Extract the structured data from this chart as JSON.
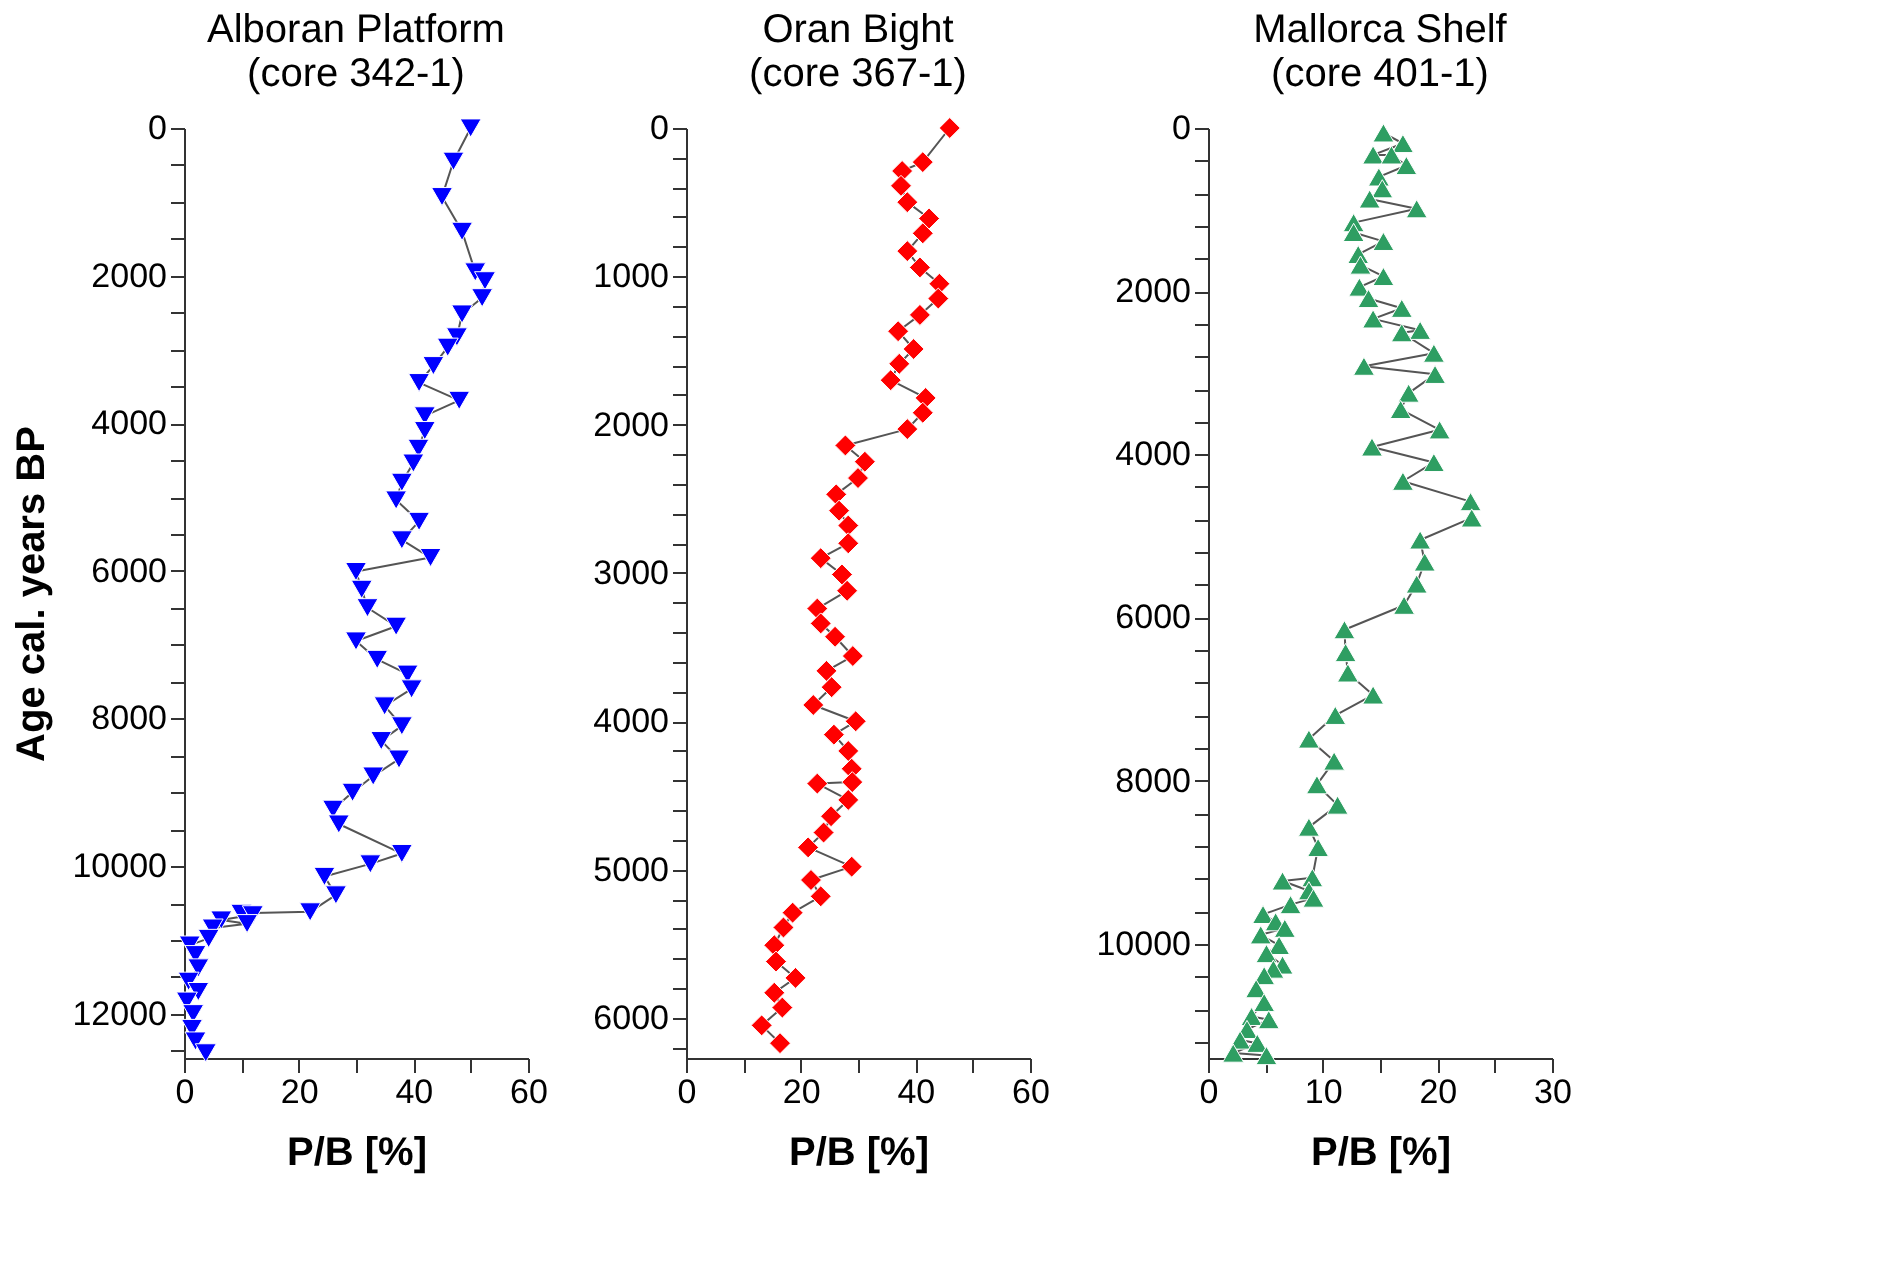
{
  "chart_data": [
    {
      "type": "line",
      "title": "Alboran Platform\n(core 342-1)",
      "xlabel": "P/B [%]",
      "ylabel": "Age cal. years BP",
      "marker": "triangle-down",
      "grid": false,
      "xlim": [
        0,
        60
      ],
      "xticks": [
        0,
        {
          "value": 10,
          "label": null
        },
        20,
        {
          "value": 30,
          "label": null
        },
        40,
        {
          "value": 50,
          "label": null
        },
        60
      ],
      "ylim": [
        12600,
        0
      ],
      "yticks": [
        0,
        {
          "value": 500,
          "label": null
        },
        {
          "value": 1000,
          "label": null
        },
        {
          "value": 1500,
          "label": null
        },
        2000,
        {
          "value": 2500,
          "label": null
        },
        {
          "value": 3000,
          "label": null
        },
        {
          "value": 3500,
          "label": null
        },
        4000,
        {
          "value": 4500,
          "label": null
        },
        {
          "value": 5000,
          "label": null
        },
        {
          "value": 5500,
          "label": null
        },
        6000,
        {
          "value": 6500,
          "label": null
        },
        {
          "value": 7000,
          "label": null
        },
        {
          "value": 7500,
          "label": null
        },
        8000,
        {
          "value": 8500,
          "label": null
        },
        {
          "value": 9000,
          "label": null
        },
        {
          "value": 9500,
          "label": null
        },
        10000,
        {
          "value": 10500,
          "label": null
        },
        {
          "value": 11000,
          "label": null
        },
        {
          "value": 11500,
          "label": null
        },
        12000,
        {
          "value": 12500,
          "label": null
        }
      ],
      "series": [
        {
          "color": "#0000ff",
          "x": [
            50,
            47,
            45,
            48.5,
            50.8,
            52.5,
            52,
            48.5,
            47.6,
            46,
            43.5,
            41,
            48,
            42,
            42,
            40.9,
            40,
            38,
            37,
            41,
            38,
            43,
            30,
            31,
            32,
            37,
            30,
            33.7,
            39,
            39.7,
            35,
            38,
            34.4,
            37.5,
            33,
            29.4,
            26,
            27,
            38,
            32.5,
            24.5,
            26.5,
            22,
            10,
            12,
            6.5,
            11,
            5,
            4.3,
            1,
            2,
            2.5,
            0.8,
            2.5,
            0.5,
            1.6,
            1.4,
            2,
            3.8
          ],
          "values": [
            0,
            450,
            930,
            1400,
            1950,
            2070,
            2300,
            2520,
            2830,
            2970,
            3220,
            3450,
            3690,
            3900,
            4100,
            4340,
            4540,
            4800,
            5040,
            5330,
            5580,
            5820,
            6010,
            6250,
            6500,
            6750,
            6950,
            7200,
            7400,
            7600,
            7830,
            8100,
            8300,
            8550,
            8780,
            9000,
            9230,
            9430,
            9830,
            9970,
            10140,
            10390,
            10620,
            10640,
            10660,
            10730,
            10780,
            10840,
            10980,
            11070,
            11200,
            11380,
            11560,
            11700,
            11830,
            12000,
            12200,
            12370,
            12530
          ]
        }
      ]
    },
    {
      "type": "line",
      "title": "Oran Bight\n(core 367-1)",
      "xlabel": "P/B [%]",
      "marker": "diamond",
      "grid": false,
      "xlim": [
        0,
        60
      ],
      "xticks": [
        0,
        {
          "value": 10,
          "label": null
        },
        20,
        {
          "value": 30,
          "label": null
        },
        40,
        {
          "value": 50,
          "label": null
        },
        60
      ],
      "ylim": [
        6270,
        0
      ],
      "yticks": [
        0,
        {
          "value": 200,
          "label": null
        },
        {
          "value": 400,
          "label": null
        },
        {
          "value": 600,
          "label": null
        },
        {
          "value": 800,
          "label": null
        },
        1000,
        {
          "value": 1200,
          "label": null
        },
        {
          "value": 1400,
          "label": null
        },
        {
          "value": 1600,
          "label": null
        },
        {
          "value": 1800,
          "label": null
        },
        2000,
        {
          "value": 2200,
          "label": null
        },
        {
          "value": 2400,
          "label": null
        },
        {
          "value": 2600,
          "label": null
        },
        {
          "value": 2800,
          "label": null
        },
        3000,
        {
          "value": 3200,
          "label": null
        },
        {
          "value": 3400,
          "label": null
        },
        {
          "value": 3600,
          "label": null
        },
        {
          "value": 3800,
          "label": null
        },
        4000,
        {
          "value": 4200,
          "label": null
        },
        {
          "value": 4400,
          "label": null
        },
        {
          "value": 4600,
          "label": null
        },
        {
          "value": 4800,
          "label": null
        },
        5000,
        {
          "value": 5200,
          "label": null
        },
        {
          "value": 5400,
          "label": null
        },
        {
          "value": 5600,
          "label": null
        },
        {
          "value": 5800,
          "label": null
        },
        6000,
        {
          "value": 6200,
          "label": null
        }
      ],
      "series": [
        {
          "color": "#ff0000",
          "x": [
            46,
            41.3,
            37.7,
            37.5,
            38.6,
            42.4,
            41.3,
            38.6,
            40.8,
            44.2,
            44,
            40.8,
            37,
            39.7,
            37.2,
            35.7,
            41.8,
            41.3,
            38.6,
            27.8,
            31.2,
            30,
            26.2,
            26.7,
            28.3,
            28.3,
            23.5,
            27.2,
            28.1,
            22.9,
            23.5,
            26,
            29.1,
            24.5,
            25.4,
            22.2,
            29.6,
            25.8,
            28.3,
            28.9,
            29,
            22.9,
            28.3,
            25.3,
            24,
            21.3,
            28.9,
            21.8,
            23.5,
            18.6,
            17,
            15.4,
            15.7,
            19.1,
            15.4,
            16.8,
            13.2,
            16.4
          ],
          "values": [
            0,
            230,
            290,
            390,
            500,
            610,
            710,
            830,
            940,
            1050,
            1150,
            1260,
            1370,
            1490,
            1590,
            1700,
            1820,
            1920,
            2030,
            2140,
            2250,
            2360,
            2470,
            2580,
            2680,
            2800,
            2900,
            3010,
            3120,
            3240,
            3340,
            3430,
            3560,
            3660,
            3770,
            3890,
            4000,
            4090,
            4200,
            4320,
            4410,
            4420,
            4530,
            4640,
            4750,
            4850,
            4980,
            5070,
            5180,
            5290,
            5390,
            5510,
            5620,
            5730,
            5830,
            5930,
            6050,
            6170
          ]
        }
      ]
    },
    {
      "type": "line",
      "title": "Mallorca Shelf\n(core 401-1)",
      "xlabel": "P/B [%]",
      "marker": "triangle",
      "grid": false,
      "xlim": [
        0,
        30
      ],
      "xticks": [
        0,
        {
          "value": 5,
          "label": null
        },
        10,
        {
          "value": 15,
          "label": null
        },
        20,
        {
          "value": 25,
          "label": null
        },
        30
      ],
      "ylim": [
        11400,
        0
      ],
      "yticks": [
        0,
        {
          "value": 400,
          "label": null
        },
        {
          "value": 800,
          "label": null
        },
        {
          "value": 1200,
          "label": null
        },
        {
          "value": 1600,
          "label": null
        },
        2000,
        {
          "value": 2400,
          "label": null
        },
        {
          "value": 2800,
          "label": null
        },
        {
          "value": 3200,
          "label": null
        },
        {
          "value": 3600,
          "label": null
        },
        4000,
        {
          "value": 4400,
          "label": null
        },
        {
          "value": 4800,
          "label": null
        },
        {
          "value": 5200,
          "label": null
        },
        {
          "value": 5600,
          "label": null
        },
        6000,
        {
          "value": 6400,
          "label": null
        },
        {
          "value": 6800,
          "label": null
        },
        {
          "value": 7200,
          "label": null
        },
        {
          "value": 7600,
          "label": null
        },
        8000,
        {
          "value": 8400,
          "label": null
        },
        {
          "value": 8800,
          "label": null
        },
        {
          "value": 9200,
          "label": null
        },
        {
          "value": 9600,
          "label": null
        },
        10000,
        {
          "value": 10400,
          "label": null
        },
        {
          "value": 10800,
          "label": null
        },
        {
          "value": 11200,
          "label": null
        }
      ],
      "series": [
        {
          "color": "#2e9e62",
          "x": [
            15.3,
            17,
            14.4,
            16,
            17.3,
            14.9,
            15.2,
            14.1,
            18.2,
            12.7,
            12.7,
            15.3,
            13.1,
            13.3,
            15.3,
            13.2,
            14,
            16.9,
            14.4,
            18.5,
            16.9,
            19.7,
            13.6,
            19.8,
            17.5,
            16.8,
            20.2,
            14.3,
            19.7,
            17,
            22.9,
            23,
            18.5,
            18.9,
            18.2,
            17.1,
            11.9,
            12,
            12.2,
            14.4,
            11.1,
            8.8,
            11,
            9.5,
            11.3,
            8.8,
            9.6,
            9.1,
            6.5,
            8.8,
            9.2,
            7.2,
            4.8,
            5.9,
            6.7,
            4.6,
            6.2,
            5.1,
            6.5,
            5.7,
            4.9,
            4.2,
            4.9,
            3.8,
            5.3,
            3.4,
            2.8,
            4.3,
            2.2,
            5.1
          ],
          "values": [
            60,
            190,
            330,
            330,
            460,
            600,
            745,
            870,
            990,
            1160,
            1280,
            1390,
            1550,
            1680,
            1820,
            1950,
            2090,
            2210,
            2340,
            2480,
            2510,
            2760,
            2920,
            3020,
            3250,
            3450,
            3700,
            3910,
            4100,
            4330,
            4580,
            4780,
            5050,
            5320,
            5590,
            5850,
            6150,
            6430,
            6680,
            6950,
            7200,
            7490,
            7760,
            8050,
            8300,
            8570,
            8820,
            9190,
            9230,
            9350,
            9440,
            9520,
            9640,
            9730,
            9810,
            9890,
            10020,
            10120,
            10260,
            10310,
            10390,
            10550,
            10720,
            10890,
            10930,
            11050,
            11180,
            11220,
            11340,
            11370
          ]
        }
      ]
    }
  ]
}
